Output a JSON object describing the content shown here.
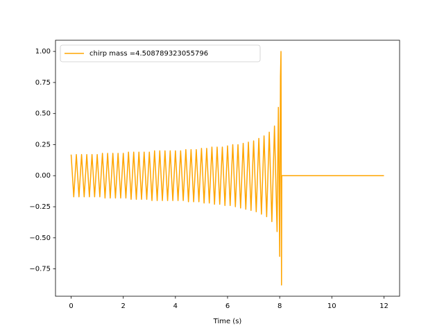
{
  "chart_data": {
    "type": "line",
    "xlabel": "Time (s)",
    "x": [
      0,
      0.1,
      0.2,
      0.3,
      0.4,
      0.5,
      0.6,
      0.7,
      0.8,
      0.9,
      1.0,
      1.1,
      1.2,
      1.3,
      1.4,
      1.5,
      1.6,
      1.7,
      1.8,
      1.9,
      2.0,
      2.1,
      2.2,
      2.3,
      2.4,
      2.5,
      2.6,
      2.7,
      2.8,
      2.9,
      3.0,
      3.1,
      3.2,
      3.3,
      3.4,
      3.5,
      3.6,
      3.7,
      3.8,
      3.9,
      4.0,
      4.1,
      4.2,
      4.3,
      4.4,
      4.5,
      4.6,
      4.7,
      4.8,
      4.9,
      5.0,
      5.1,
      5.2,
      5.3,
      5.4,
      5.5,
      5.6,
      5.7,
      5.8,
      5.9,
      6.0,
      6.1,
      6.2,
      6.3,
      6.4,
      6.5,
      6.6,
      6.7,
      6.8,
      6.9,
      7.0,
      7.1,
      7.2,
      7.3,
      7.4,
      7.5,
      7.6,
      7.7,
      7.8,
      7.9,
      7.95,
      8.0,
      8.03,
      8.05,
      8.07,
      8.08,
      12
    ],
    "series": [
      {
        "name": "chirp mass =4.508789323055796",
        "color": "#ffa500",
        "values": [
          0.17,
          -0.17,
          0.17,
          -0.17,
          0.17,
          -0.17,
          0.17,
          -0.17,
          0.17,
          -0.17,
          0.17,
          -0.17,
          0.18,
          -0.18,
          0.18,
          -0.18,
          0.18,
          -0.18,
          0.18,
          -0.18,
          0.18,
          -0.18,
          0.19,
          -0.19,
          0.19,
          -0.19,
          0.19,
          -0.19,
          0.19,
          -0.19,
          0.19,
          -0.2,
          0.2,
          -0.2,
          0.2,
          -0.2,
          0.2,
          -0.2,
          0.2,
          -0.2,
          0.2,
          -0.2,
          0.2,
          -0.2,
          0.21,
          -0.21,
          0.21,
          -0.21,
          0.21,
          -0.21,
          0.22,
          -0.22,
          0.22,
          -0.22,
          0.23,
          -0.23,
          0.23,
          -0.23,
          0.23,
          -0.24,
          0.24,
          -0.24,
          0.25,
          -0.25,
          0.25,
          -0.26,
          0.26,
          -0.27,
          0.27,
          -0.28,
          0.28,
          -0.29,
          0.3,
          -0.31,
          0.32,
          -0.33,
          0.35,
          -0.37,
          0.4,
          -0.45,
          0.55,
          -0.65,
          0.8,
          1.0,
          -0.88,
          0,
          0
        ]
      }
    ],
    "xlim": [
      -0.6,
      12.6
    ],
    "ylim": [
      -0.97,
      1.09
    ],
    "xticks": [
      0,
      2,
      4,
      6,
      8,
      10,
      12
    ],
    "yticks": [
      {
        "value": -0.75,
        "label": "−0.75"
      },
      {
        "value": -0.5,
        "label": "−0.50"
      },
      {
        "value": -0.25,
        "label": "−0.25"
      },
      {
        "value": 0,
        "label": "0.00"
      },
      {
        "value": 0.25,
        "label": "0.25"
      },
      {
        "value": 0.5,
        "label": "0.50"
      },
      {
        "value": 0.75,
        "label": "0.75"
      },
      {
        "value": 1.0,
        "label": "1.00"
      }
    ],
    "legend": "upper left",
    "grid": false
  }
}
